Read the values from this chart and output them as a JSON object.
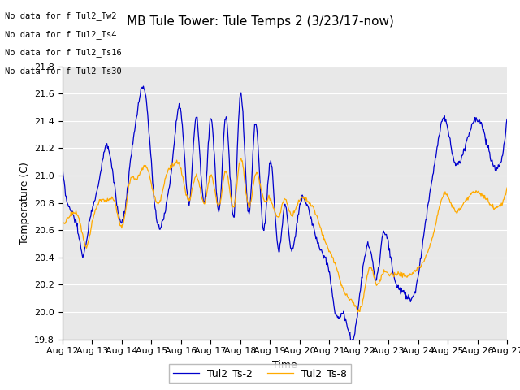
{
  "title": "MB Tule Tower: Tule Temps 2 (3/23/17-now)",
  "xlabel": "Time",
  "ylabel": "Temperature (C)",
  "ylim": [
    19.8,
    21.8
  ],
  "yticks": [
    19.8,
    20.0,
    20.2,
    20.4,
    20.6,
    20.8,
    21.0,
    21.2,
    21.4,
    21.6,
    21.8
  ],
  "xtick_labels": [
    "Aug 12",
    "Aug 13",
    "Aug 14",
    "Aug 15",
    "Aug 16",
    "Aug 17",
    "Aug 18",
    "Aug 19",
    "Aug 20",
    "Aug 21",
    "Aug 22",
    "Aug 23",
    "Aug 24",
    "Aug 25",
    "Aug 26",
    "Aug 27"
  ],
  "no_data_lines": [
    "No data for f Tul2_Tw2",
    "No data for f Tul2_Ts4",
    "No data for f Tul2_Ts16",
    "No data for f Tul2_Ts30"
  ],
  "legend_entries": [
    "Tul2_Ts-2",
    "Tul2_Ts-8"
  ],
  "line_colors": [
    "#0000cc",
    "#ffaa00"
  ],
  "plot_bg_color": "#e8e8e8",
  "grid_color": "#ffffff",
  "title_fontsize": 11,
  "axis_fontsize": 9,
  "tick_fontsize": 8,
  "blue_keypoints": [
    [
      0,
      21.06
    ],
    [
      0.25,
      20.75
    ],
    [
      0.5,
      20.62
    ],
    [
      0.7,
      20.42
    ],
    [
      0.9,
      20.65
    ],
    [
      1.2,
      20.92
    ],
    [
      1.5,
      21.22
    ],
    [
      1.8,
      20.85
    ],
    [
      2.0,
      20.65
    ],
    [
      2.3,
      21.1
    ],
    [
      2.5,
      21.42
    ],
    [
      2.8,
      21.6
    ],
    [
      3.1,
      20.82
    ],
    [
      3.3,
      20.62
    ],
    [
      3.5,
      20.78
    ],
    [
      3.7,
      21.08
    ],
    [
      4.0,
      21.47
    ],
    [
      4.3,
      20.82
    ],
    [
      4.5,
      21.42
    ],
    [
      4.8,
      20.82
    ],
    [
      5.0,
      21.42
    ],
    [
      5.3,
      20.75
    ],
    [
      5.5,
      21.43
    ],
    [
      5.8,
      20.72
    ],
    [
      6.0,
      21.58
    ],
    [
      6.3,
      20.72
    ],
    [
      6.5,
      21.38
    ],
    [
      6.8,
      20.6
    ],
    [
      7.0,
      21.1
    ],
    [
      7.3,
      20.45
    ],
    [
      7.5,
      20.78
    ],
    [
      7.7,
      20.48
    ],
    [
      8.0,
      20.78
    ],
    [
      8.3,
      20.75
    ],
    [
      8.5,
      20.6
    ],
    [
      8.7,
      20.45
    ],
    [
      9.0,
      20.3
    ],
    [
      9.2,
      20.0
    ],
    [
      9.5,
      19.98
    ],
    [
      9.8,
      19.8
    ],
    [
      10.1,
      20.25
    ],
    [
      10.4,
      20.45
    ],
    [
      10.6,
      20.25
    ],
    [
      10.8,
      20.55
    ],
    [
      11.0,
      20.5
    ],
    [
      11.2,
      20.25
    ],
    [
      11.5,
      20.15
    ],
    [
      11.7,
      20.1
    ],
    [
      11.9,
      20.15
    ],
    [
      12.2,
      20.58
    ],
    [
      12.6,
      21.15
    ],
    [
      12.9,
      21.42
    ],
    [
      13.2,
      21.12
    ],
    [
      13.5,
      21.15
    ],
    [
      14.0,
      21.42
    ],
    [
      14.5,
      21.1
    ],
    [
      15.0,
      21.42
    ]
  ],
  "orange_keypoints": [
    [
      0,
      20.65
    ],
    [
      0.3,
      20.72
    ],
    [
      0.6,
      20.65
    ],
    [
      0.8,
      20.48
    ],
    [
      1.0,
      20.65
    ],
    [
      1.3,
      20.82
    ],
    [
      1.5,
      20.82
    ],
    [
      1.8,
      20.78
    ],
    [
      2.0,
      20.62
    ],
    [
      2.3,
      20.97
    ],
    [
      2.5,
      20.97
    ],
    [
      2.8,
      21.08
    ],
    [
      3.1,
      20.85
    ],
    [
      3.3,
      20.82
    ],
    [
      3.5,
      21.0
    ],
    [
      3.7,
      21.07
    ],
    [
      4.0,
      21.05
    ],
    [
      4.3,
      20.82
    ],
    [
      4.5,
      21.0
    ],
    [
      4.8,
      20.8
    ],
    [
      5.0,
      21.0
    ],
    [
      5.3,
      20.78
    ],
    [
      5.5,
      21.03
    ],
    [
      5.8,
      20.78
    ],
    [
      6.0,
      21.12
    ],
    [
      6.3,
      20.77
    ],
    [
      6.5,
      21.0
    ],
    [
      6.8,
      20.82
    ],
    [
      7.0,
      20.83
    ],
    [
      7.3,
      20.7
    ],
    [
      7.5,
      20.83
    ],
    [
      7.7,
      20.72
    ],
    [
      8.0,
      20.82
    ],
    [
      8.3,
      20.8
    ],
    [
      8.5,
      20.75
    ],
    [
      8.7,
      20.62
    ],
    [
      9.0,
      20.45
    ],
    [
      9.2,
      20.35
    ],
    [
      9.5,
      20.15
    ],
    [
      9.8,
      20.07
    ],
    [
      10.1,
      20.05
    ],
    [
      10.4,
      20.33
    ],
    [
      10.6,
      20.2
    ],
    [
      10.8,
      20.28
    ],
    [
      11.0,
      20.28
    ],
    [
      11.2,
      20.28
    ],
    [
      11.5,
      20.27
    ],
    [
      11.7,
      20.27
    ],
    [
      11.9,
      20.3
    ],
    [
      12.2,
      20.38
    ],
    [
      12.6,
      20.65
    ],
    [
      12.9,
      20.87
    ],
    [
      13.2,
      20.75
    ],
    [
      13.5,
      20.78
    ],
    [
      14.0,
      20.88
    ],
    [
      14.5,
      20.78
    ],
    [
      15.0,
      20.9
    ]
  ]
}
